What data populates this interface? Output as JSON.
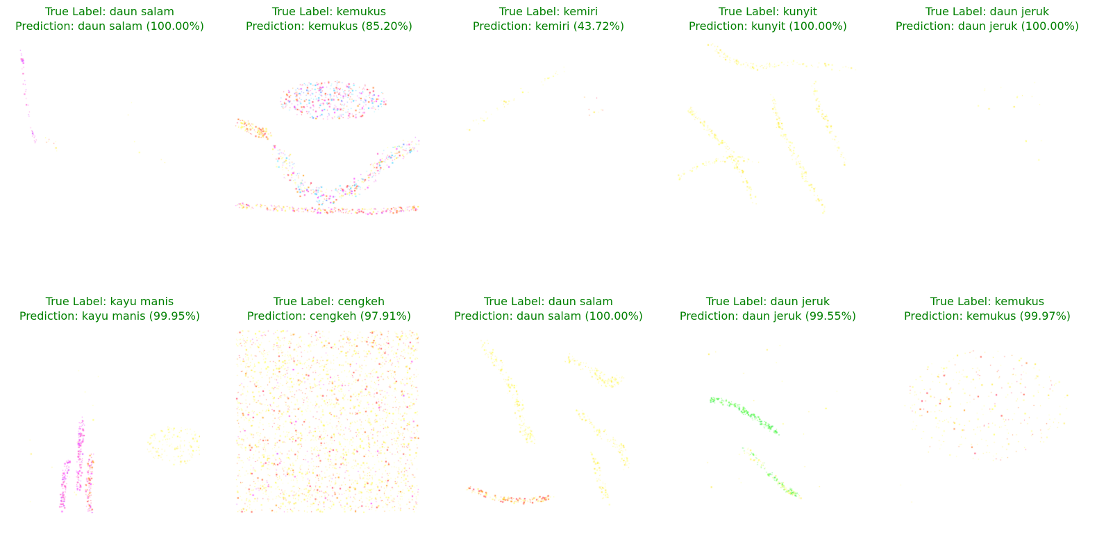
{
  "panels": [
    {
      "true_label": "True Label: daun salam",
      "prediction": "Prediction: daun salam (100.00%)",
      "title_color": "#008000"
    },
    {
      "true_label": "True Label: kemukus",
      "prediction": "Prediction: kemukus (85.20%)",
      "title_color": "#008000"
    },
    {
      "true_label": "True Label: kemiri",
      "prediction": "Prediction: kemiri (43.72%)",
      "title_color": "#008000"
    },
    {
      "true_label": "True Label: kunyit",
      "prediction": "Prediction: kunyit (100.00%)",
      "title_color": "#008000"
    },
    {
      "true_label": "True Label: daun jeruk",
      "prediction": "Prediction: daun jeruk (100.00%)",
      "title_color": "#008000"
    },
    {
      "true_label": "True Label: kayu manis",
      "prediction": "Prediction: kayu manis (99.95%)",
      "title_color": "#008000"
    },
    {
      "true_label": "True Label: cengkeh",
      "prediction": "Prediction: cengkeh (97.91%)",
      "title_color": "#008000"
    },
    {
      "true_label": "True Label: daun salam",
      "prediction": "Prediction: daun salam (100.00%)",
      "title_color": "#008000"
    },
    {
      "true_label": "True Label: daun jeruk",
      "prediction": "Prediction: daun jeruk (99.55%)",
      "title_color": "#008000"
    },
    {
      "true_label": "True Label: kemukus",
      "prediction": "Prediction: kemukus (99.97%)",
      "title_color": "#008000"
    }
  ]
}
